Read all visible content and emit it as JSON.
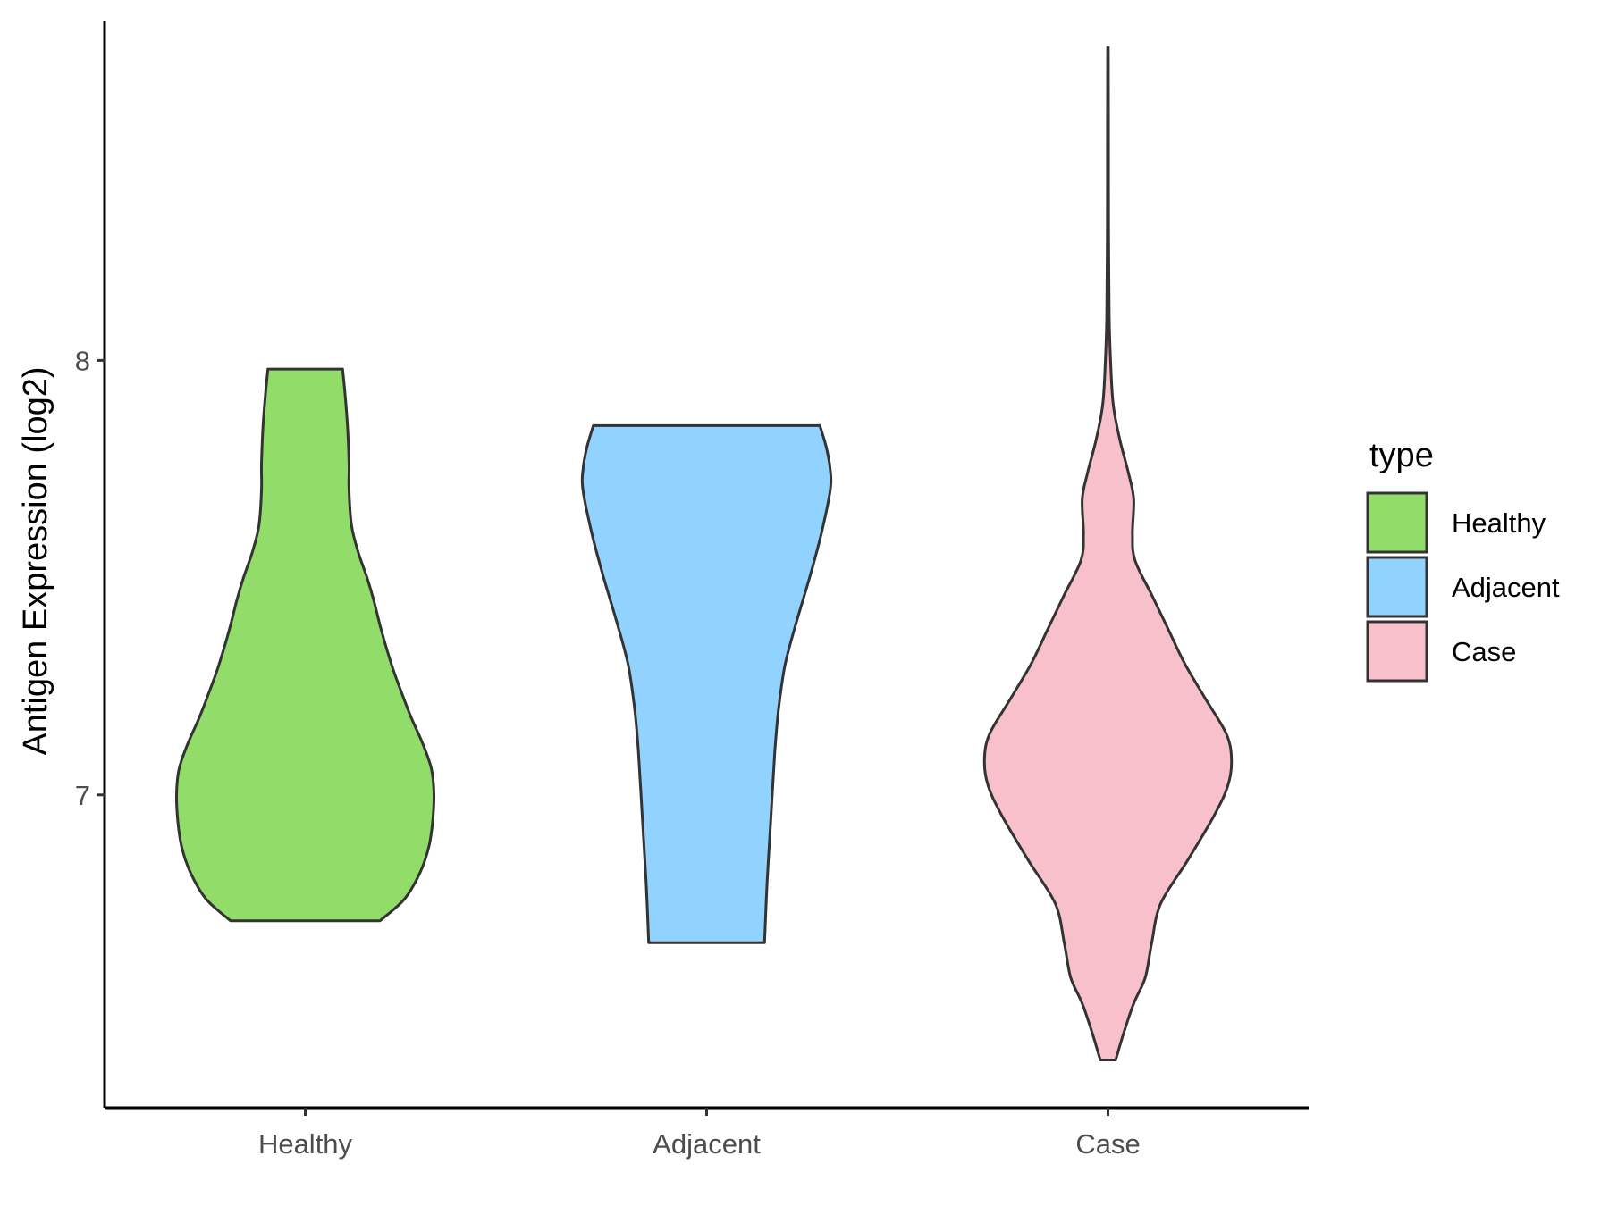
{
  "chart_data": {
    "type": "violin",
    "ylabel": "Antigen Expression (log2)",
    "xlabel": "",
    "categories": [
      "Healthy",
      "Adjacent",
      "Case"
    ],
    "y_ticks": [
      7,
      8
    ],
    "ylim": [
      6.28,
      8.78
    ],
    "grid": false,
    "legend": {
      "title": "type",
      "position": "right",
      "entries": [
        "Healthy",
        "Adjacent",
        "Case"
      ]
    },
    "series": [
      {
        "category": "Healthy",
        "color": "#92DC6A",
        "min": 6.71,
        "max": 7.98,
        "density_profile": [
          [
            6.71,
            0.58
          ],
          [
            6.76,
            0.77
          ],
          [
            6.82,
            0.89
          ],
          [
            6.88,
            0.96
          ],
          [
            6.94,
            0.99
          ],
          [
            7.0,
            1.0
          ],
          [
            7.06,
            0.98
          ],
          [
            7.12,
            0.91
          ],
          [
            7.18,
            0.82
          ],
          [
            7.25,
            0.73
          ],
          [
            7.3,
            0.67
          ],
          [
            7.38,
            0.59
          ],
          [
            7.45,
            0.53
          ],
          [
            7.5,
            0.48
          ],
          [
            7.56,
            0.41
          ],
          [
            7.62,
            0.36
          ],
          [
            7.7,
            0.34
          ],
          [
            7.76,
            0.34
          ],
          [
            7.84,
            0.33
          ],
          [
            7.92,
            0.31
          ],
          [
            7.98,
            0.29
          ]
        ]
      },
      {
        "category": "Adjacent",
        "color": "#92D2FF",
        "min": 6.66,
        "max": 7.85,
        "density_profile": [
          [
            6.66,
            0.45
          ],
          [
            6.8,
            0.47
          ],
          [
            6.95,
            0.5
          ],
          [
            7.1,
            0.53
          ],
          [
            7.2,
            0.56
          ],
          [
            7.3,
            0.61
          ],
          [
            7.4,
            0.7
          ],
          [
            7.5,
            0.8
          ],
          [
            7.6,
            0.89
          ],
          [
            7.7,
            0.96
          ],
          [
            7.75,
            0.96
          ],
          [
            7.8,
            0.93
          ],
          [
            7.85,
            0.88
          ]
        ]
      },
      {
        "category": "Case",
        "color": "#F7C0CB",
        "min": 6.39,
        "max": 8.72,
        "density_profile": [
          [
            6.39,
            0.06
          ],
          [
            6.45,
            0.12
          ],
          [
            6.52,
            0.2
          ],
          [
            6.58,
            0.29
          ],
          [
            6.66,
            0.34
          ],
          [
            6.75,
            0.41
          ],
          [
            6.85,
            0.62
          ],
          [
            6.95,
            0.82
          ],
          [
            7.02,
            0.93
          ],
          [
            7.08,
            0.96
          ],
          [
            7.14,
            0.92
          ],
          [
            7.22,
            0.76
          ],
          [
            7.3,
            0.6
          ],
          [
            7.38,
            0.47
          ],
          [
            7.46,
            0.34
          ],
          [
            7.54,
            0.21
          ],
          [
            7.6,
            0.19
          ],
          [
            7.68,
            0.2
          ],
          [
            7.74,
            0.16
          ],
          [
            7.82,
            0.09
          ],
          [
            7.9,
            0.04
          ],
          [
            8.0,
            0.02
          ],
          [
            8.1,
            0.01
          ],
          [
            8.3,
            0.005
          ],
          [
            8.5,
            0.004
          ],
          [
            8.72,
            0.003
          ]
        ]
      }
    ]
  }
}
